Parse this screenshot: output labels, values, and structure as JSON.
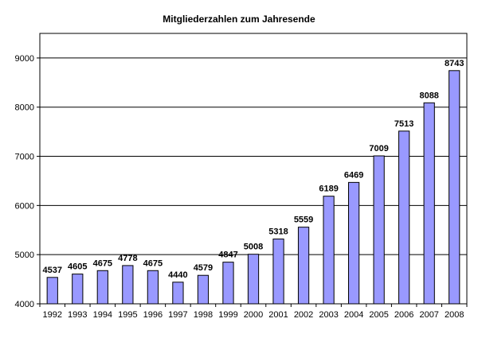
{
  "chart_data": {
    "type": "bar",
    "title": "Mitgliederzahlen zum Jahresende",
    "xlabel": "",
    "ylabel": "",
    "categories": [
      "1992",
      "1993",
      "1994",
      "1995",
      "1996",
      "1997",
      "1998",
      "1999",
      "2000",
      "2001",
      "2002",
      "2003",
      "2004",
      "2005",
      "2006",
      "2007",
      "2008"
    ],
    "values": [
      4537,
      4605,
      4675,
      4778,
      4675,
      4440,
      4579,
      4847,
      5008,
      5318,
      5559,
      6189,
      6469,
      7009,
      7513,
      8088,
      8743
    ],
    "ylim": [
      4000,
      9500
    ],
    "yticks": [
      4000,
      5000,
      6000,
      7000,
      8000,
      9000
    ],
    "grid": true,
    "legend": "none",
    "colors": {
      "bar_fill": "#9999ff",
      "bar_stroke": "#000000",
      "grid": "#000000",
      "plot_bg": "#ffffff"
    }
  }
}
